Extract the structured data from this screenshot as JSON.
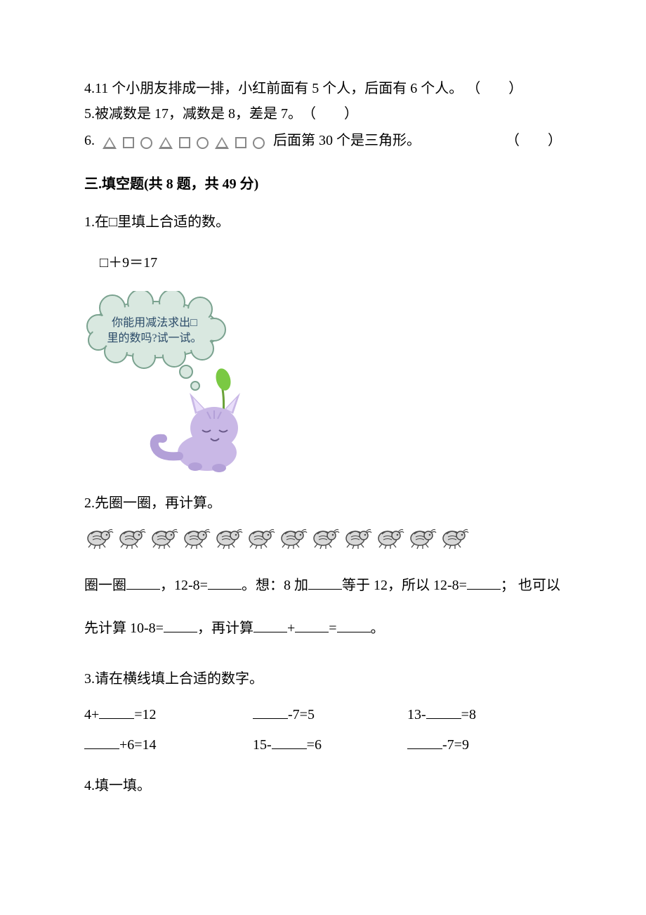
{
  "tf": {
    "q4": "4.11 个小朋友排成一排，小红前面有 5 个人，后面有 6 个人。 （　　）",
    "q5": "5.被减数是 17，减数是 8，差是 7。　（　　）",
    "q6_num": "6.",
    "q6_text_after": "后面第 30 个是三角形。",
    "q6_paren": "（　　）"
  },
  "section3": {
    "heading": "三.填空题(共 8 题，共 49 分)",
    "q1": {
      "stem": "1.在□里填上合适的数。",
      "expr": "□＋9＝17",
      "bubble_line1": "你能用减法求出□",
      "bubble_line2": "里的数吗?试一试。"
    },
    "q2": {
      "stem": "2.先圈一圈，再计算。",
      "bug_count": 12,
      "line1_a": "圈一圈",
      "line1_b": "，12-8=",
      "line1_c": "。想：8 加",
      "line1_d": "等于 12，所以 12-8=",
      "line1_e": "； 也可以",
      "line2_a": "先计算 10-8=",
      "line2_b": "，再计算",
      "line2_c": "+",
      "line2_d": "=",
      "line2_e": "。"
    },
    "q3": {
      "stem": "3.请在横线填上合适的数字。",
      "r1c1_a": "4+",
      "r1c1_b": "=12",
      "r1c2_b": "-7=5",
      "r1c3_a": "13-",
      "r1c3_b": "=8",
      "r2c1_b": "+6=14",
      "r2c2_a": "15-",
      "r2c2_b": "=6",
      "r2c3_b": "-7=9"
    },
    "q4": {
      "stem": "4.填一填。"
    }
  },
  "style": {
    "bubble_fill": "#d9e8e0",
    "bubble_stroke": "#7aa28f",
    "bubble_text_color": "#2a4a68",
    "cat_body": "#c9b8e6",
    "cat_body_dark": "#b3a0d8",
    "cat_ear_inner": "#e9defa",
    "leaf": "#7ac943",
    "stem": "#6aa238",
    "bug_body": "#d8d8d8",
    "bug_outline": "#4a4a4a",
    "shape_gray": "#888888"
  }
}
